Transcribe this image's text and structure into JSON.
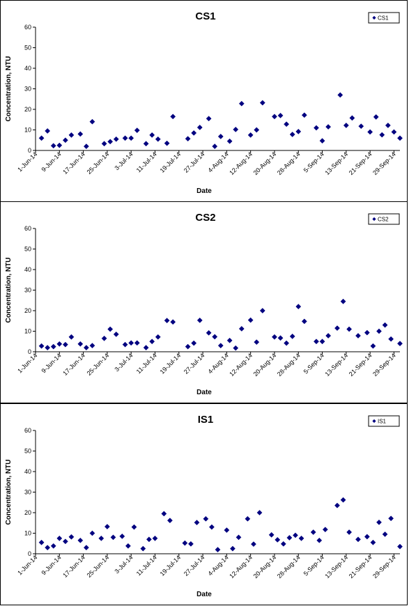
{
  "chart_data": [
    {
      "type": "scatter",
      "title": "CS1",
      "xlabel": "Date",
      "ylabel": "Concentration, NTU",
      "ylim": [
        0,
        60
      ],
      "yticks": [
        "0",
        "10",
        "20",
        "30",
        "40",
        "50",
        "60"
      ],
      "xlim": [
        "2014-06-01",
        "2014-10-01"
      ],
      "xticks": [
        {
          "date": "2014-06-01",
          "label": "1-Jun-14"
        },
        {
          "date": "2014-06-09",
          "label": "9-Jun-14"
        },
        {
          "date": "2014-06-17",
          "label": "17-Jun-14"
        },
        {
          "date": "2014-06-25",
          "label": "25-Jun-14"
        },
        {
          "date": "2014-07-03",
          "label": "3-Jul-14"
        },
        {
          "date": "2014-07-11",
          "label": "11-Jul-14"
        },
        {
          "date": "2014-07-19",
          "label": "19-Jul-14"
        },
        {
          "date": "2014-07-27",
          "label": "27-Jul-14"
        },
        {
          "date": "2014-08-04",
          "label": "4-Aug-14"
        },
        {
          "date": "2014-08-12",
          "label": "12-Aug-14"
        },
        {
          "date": "2014-08-20",
          "label": "20-Aug-14"
        },
        {
          "date": "2014-08-28",
          "label": "28-Aug-14"
        },
        {
          "date": "2014-09-05",
          "label": "5-Sep-14"
        },
        {
          "date": "2014-09-13",
          "label": "13-Sep-14"
        },
        {
          "date": "2014-09-21",
          "label": "21-Sep-14"
        },
        {
          "date": "2014-09-29",
          "label": "29-Sep-14"
        }
      ],
      "legend": "top-right",
      "grid": false,
      "series": [
        {
          "name": "CS1",
          "color": "#000080",
          "marker": "diamond",
          "points": [
            {
              "x": "2014-06-03",
              "y": 6
            },
            {
              "x": "2014-06-05",
              "y": 9.5
            },
            {
              "x": "2014-06-07",
              "y": 2.3
            },
            {
              "x": "2014-06-09",
              "y": 2.5
            },
            {
              "x": "2014-06-11",
              "y": 5
            },
            {
              "x": "2014-06-13",
              "y": 7.5
            },
            {
              "x": "2014-06-16",
              "y": 8
            },
            {
              "x": "2014-06-18",
              "y": 2
            },
            {
              "x": "2014-06-20",
              "y": 14
            },
            {
              "x": "2014-06-24",
              "y": 3.3
            },
            {
              "x": "2014-06-26",
              "y": 4.3
            },
            {
              "x": "2014-06-28",
              "y": 5.5
            },
            {
              "x": "2014-07-01",
              "y": 6
            },
            {
              "x": "2014-07-03",
              "y": 6
            },
            {
              "x": "2014-07-05",
              "y": 9.8
            },
            {
              "x": "2014-07-08",
              "y": 3.3
            },
            {
              "x": "2014-07-10",
              "y": 7.5
            },
            {
              "x": "2014-07-12",
              "y": 5.5
            },
            {
              "x": "2014-07-15",
              "y": 3.5
            },
            {
              "x": "2014-07-17",
              "y": 16.5
            },
            {
              "x": "2014-07-22",
              "y": 5.7
            },
            {
              "x": "2014-07-24",
              "y": 8.5
            },
            {
              "x": "2014-07-26",
              "y": 11.2
            },
            {
              "x": "2014-07-29",
              "y": 15.5
            },
            {
              "x": "2014-07-31",
              "y": 2
            },
            {
              "x": "2014-08-02",
              "y": 6.8
            },
            {
              "x": "2014-08-05",
              "y": 4.5
            },
            {
              "x": "2014-08-07",
              "y": 10.2
            },
            {
              "x": "2014-08-09",
              "y": 22.8
            },
            {
              "x": "2014-08-12",
              "y": 7.5
            },
            {
              "x": "2014-08-14",
              "y": 10
            },
            {
              "x": "2014-08-16",
              "y": 23.2
            },
            {
              "x": "2014-08-20",
              "y": 16.5
            },
            {
              "x": "2014-08-22",
              "y": 17
            },
            {
              "x": "2014-08-24",
              "y": 12.8
            },
            {
              "x": "2014-08-26",
              "y": 7.8
            },
            {
              "x": "2014-08-28",
              "y": 9.2
            },
            {
              "x": "2014-08-30",
              "y": 17.2
            },
            {
              "x": "2014-09-03",
              "y": 11
            },
            {
              "x": "2014-09-05",
              "y": 4.7
            },
            {
              "x": "2014-09-07",
              "y": 11.5
            },
            {
              "x": "2014-09-11",
              "y": 27
            },
            {
              "x": "2014-09-13",
              "y": 12.2
            },
            {
              "x": "2014-09-15",
              "y": 15.8
            },
            {
              "x": "2014-09-18",
              "y": 11.8
            },
            {
              "x": "2014-09-21",
              "y": 9
            },
            {
              "x": "2014-09-23",
              "y": 16.3
            },
            {
              "x": "2014-09-25",
              "y": 7.6
            },
            {
              "x": "2014-09-27",
              "y": 12.2
            },
            {
              "x": "2014-09-29",
              "y": 9
            },
            {
              "x": "2014-10-01",
              "y": 6
            }
          ]
        }
      ]
    },
    {
      "type": "scatter",
      "title": "CS2",
      "xlabel": "Date",
      "ylabel": "Concentration, NTU",
      "ylim": [
        0,
        60
      ],
      "yticks": [
        "0",
        "10",
        "20",
        "30",
        "40",
        "50",
        "60"
      ],
      "xlim": [
        "2014-06-01",
        "2014-10-01"
      ],
      "xticks": [
        {
          "date": "2014-06-01",
          "label": "1-Jun-14"
        },
        {
          "date": "2014-06-09",
          "label": "9-Jun-14"
        },
        {
          "date": "2014-06-17",
          "label": "17-Jun-14"
        },
        {
          "date": "2014-06-25",
          "label": "25-Jun-14"
        },
        {
          "date": "2014-07-03",
          "label": "3-Jul-14"
        },
        {
          "date": "2014-07-11",
          "label": "11-Jul-14"
        },
        {
          "date": "2014-07-19",
          "label": "19-Jul-14"
        },
        {
          "date": "2014-07-27",
          "label": "27-Jul-14"
        },
        {
          "date": "2014-08-04",
          "label": "4-Aug-14"
        },
        {
          "date": "2014-08-12",
          "label": "12-Aug-14"
        },
        {
          "date": "2014-08-20",
          "label": "20-Aug-14"
        },
        {
          "date": "2014-08-28",
          "label": "28-Aug-14"
        },
        {
          "date": "2014-09-05",
          "label": "5-Sep-14"
        },
        {
          "date": "2014-09-13",
          "label": "13-Sep-14"
        },
        {
          "date": "2014-09-21",
          "label": "21-Sep-14"
        },
        {
          "date": "2014-09-29",
          "label": "29-Sep-14"
        }
      ],
      "legend": "top-right",
      "grid": false,
      "series": [
        {
          "name": "CS2",
          "color": "#000080",
          "marker": "diamond",
          "points": [
            {
              "x": "2014-06-03",
              "y": 2.8
            },
            {
              "x": "2014-06-05",
              "y": 2
            },
            {
              "x": "2014-06-07",
              "y": 2.5
            },
            {
              "x": "2014-06-09",
              "y": 3.8
            },
            {
              "x": "2014-06-11",
              "y": 3.5
            },
            {
              "x": "2014-06-13",
              "y": 7.2
            },
            {
              "x": "2014-06-16",
              "y": 3.8
            },
            {
              "x": "2014-06-18",
              "y": 2
            },
            {
              "x": "2014-06-20",
              "y": 3
            },
            {
              "x": "2014-06-24",
              "y": 6.5
            },
            {
              "x": "2014-06-26",
              "y": 11
            },
            {
              "x": "2014-06-28",
              "y": 8.5
            },
            {
              "x": "2014-07-01",
              "y": 3.5
            },
            {
              "x": "2014-07-03",
              "y": 4.3
            },
            {
              "x": "2014-07-05",
              "y": 4.3
            },
            {
              "x": "2014-07-08",
              "y": 2
            },
            {
              "x": "2014-07-10",
              "y": 5
            },
            {
              "x": "2014-07-12",
              "y": 7.2
            },
            {
              "x": "2014-07-15",
              "y": 15.2
            },
            {
              "x": "2014-07-17",
              "y": 14.5
            },
            {
              "x": "2014-07-22",
              "y": 2.5
            },
            {
              "x": "2014-07-24",
              "y": 4.2
            },
            {
              "x": "2014-07-26",
              "y": 15.3
            },
            {
              "x": "2014-07-29",
              "y": 9.2
            },
            {
              "x": "2014-07-31",
              "y": 7.3
            },
            {
              "x": "2014-08-02",
              "y": 3
            },
            {
              "x": "2014-08-05",
              "y": 5.5
            },
            {
              "x": "2014-08-07",
              "y": 1.8
            },
            {
              "x": "2014-08-09",
              "y": 11.2
            },
            {
              "x": "2014-08-12",
              "y": 15.4
            },
            {
              "x": "2014-08-14",
              "y": 4.7
            },
            {
              "x": "2014-08-16",
              "y": 20
            },
            {
              "x": "2014-08-20",
              "y": 7.2
            },
            {
              "x": "2014-08-22",
              "y": 6.7
            },
            {
              "x": "2014-08-24",
              "y": 4.2
            },
            {
              "x": "2014-08-26",
              "y": 7.5
            },
            {
              "x": "2014-08-28",
              "y": 22
            },
            {
              "x": "2014-08-30",
              "y": 14.8
            },
            {
              "x": "2014-09-03",
              "y": 5
            },
            {
              "x": "2014-09-05",
              "y": 5
            },
            {
              "x": "2014-09-07",
              "y": 7.8
            },
            {
              "x": "2014-09-10",
              "y": 11.5
            },
            {
              "x": "2014-09-12",
              "y": 24.5
            },
            {
              "x": "2014-09-14",
              "y": 11
            },
            {
              "x": "2014-09-17",
              "y": 7.8
            },
            {
              "x": "2014-09-20",
              "y": 9.3
            },
            {
              "x": "2014-09-22",
              "y": 2.8
            },
            {
              "x": "2014-09-24",
              "y": 10
            },
            {
              "x": "2014-09-26",
              "y": 13
            },
            {
              "x": "2014-09-28",
              "y": 6.2
            },
            {
              "x": "2014-10-01",
              "y": 4
            }
          ]
        }
      ]
    },
    {
      "type": "scatter",
      "title": "IS1",
      "xlabel": "Date",
      "ylabel": "Concentration, NTU",
      "ylim": [
        0,
        60
      ],
      "yticks": [
        "0",
        "10",
        "20",
        "30",
        "40",
        "50",
        "60"
      ],
      "xlim": [
        "2014-06-01",
        "2014-10-01"
      ],
      "xticks": [
        {
          "date": "2014-06-01",
          "label": "1-Jun-14"
        },
        {
          "date": "2014-06-09",
          "label": "9-Jun-14"
        },
        {
          "date": "2014-06-17",
          "label": "17-Jun-14"
        },
        {
          "date": "2014-06-25",
          "label": "25-Jun-14"
        },
        {
          "date": "2014-07-03",
          "label": "3-Jul-14"
        },
        {
          "date": "2014-07-11",
          "label": "11-Jul-14"
        },
        {
          "date": "2014-07-19",
          "label": "19-Jul-14"
        },
        {
          "date": "2014-07-27",
          "label": "27-Jul-14"
        },
        {
          "date": "2014-08-04",
          "label": "4-Aug-14"
        },
        {
          "date": "2014-08-12",
          "label": "12-Aug-14"
        },
        {
          "date": "2014-08-20",
          "label": "20-Aug-14"
        },
        {
          "date": "2014-08-28",
          "label": "28-Aug-14"
        },
        {
          "date": "2014-09-05",
          "label": "5-Sep-14"
        },
        {
          "date": "2014-09-13",
          "label": "13-Sep-14"
        },
        {
          "date": "2014-09-21",
          "label": "21-Sep-14"
        },
        {
          "date": "2014-09-29",
          "label": "29-Sep-14"
        }
      ],
      "legend": "top-right",
      "grid": false,
      "series": [
        {
          "name": "IS1",
          "color": "#000080",
          "marker": "diamond",
          "points": [
            {
              "x": "2014-06-03",
              "y": 5.5
            },
            {
              "x": "2014-06-05",
              "y": 3
            },
            {
              "x": "2014-06-07",
              "y": 3.8
            },
            {
              "x": "2014-06-09",
              "y": 7.5
            },
            {
              "x": "2014-06-11",
              "y": 6
            },
            {
              "x": "2014-06-13",
              "y": 8.2
            },
            {
              "x": "2014-06-16",
              "y": 6.5
            },
            {
              "x": "2014-06-18",
              "y": 3
            },
            {
              "x": "2014-06-20",
              "y": 10
            },
            {
              "x": "2014-06-23",
              "y": 7.5
            },
            {
              "x": "2014-06-25",
              "y": 13.2
            },
            {
              "x": "2014-06-27",
              "y": 8
            },
            {
              "x": "2014-06-30",
              "y": 8.5
            },
            {
              "x": "2014-07-02",
              "y": 3.8
            },
            {
              "x": "2014-07-04",
              "y": 13
            },
            {
              "x": "2014-07-07",
              "y": 2.5
            },
            {
              "x": "2014-07-09",
              "y": 7
            },
            {
              "x": "2014-07-11",
              "y": 7.5
            },
            {
              "x": "2014-07-14",
              "y": 19.5
            },
            {
              "x": "2014-07-16",
              "y": 16.2
            },
            {
              "x": "2014-07-21",
              "y": 5.2
            },
            {
              "x": "2014-07-23",
              "y": 4.8
            },
            {
              "x": "2014-07-25",
              "y": 15.2
            },
            {
              "x": "2014-07-28",
              "y": 17
            },
            {
              "x": "2014-07-30",
              "y": 13
            },
            {
              "x": "2014-08-01",
              "y": 2
            },
            {
              "x": "2014-08-04",
              "y": 11.5
            },
            {
              "x": "2014-08-06",
              "y": 2.5
            },
            {
              "x": "2014-08-08",
              "y": 8
            },
            {
              "x": "2014-08-11",
              "y": 17
            },
            {
              "x": "2014-08-13",
              "y": 4.7
            },
            {
              "x": "2014-08-15",
              "y": 20
            },
            {
              "x": "2014-08-19",
              "y": 9.2
            },
            {
              "x": "2014-08-21",
              "y": 6.8
            },
            {
              "x": "2014-08-23",
              "y": 4.8
            },
            {
              "x": "2014-08-25",
              "y": 7.8
            },
            {
              "x": "2014-08-27",
              "y": 9
            },
            {
              "x": "2014-08-29",
              "y": 7.5
            },
            {
              "x": "2014-09-02",
              "y": 10.5
            },
            {
              "x": "2014-09-04",
              "y": 6.5
            },
            {
              "x": "2014-09-06",
              "y": 11.8
            },
            {
              "x": "2014-09-10",
              "y": 23.5
            },
            {
              "x": "2014-09-12",
              "y": 26.2
            },
            {
              "x": "2014-09-14",
              "y": 10.5
            },
            {
              "x": "2014-09-17",
              "y": 7
            },
            {
              "x": "2014-09-20",
              "y": 8.3
            },
            {
              "x": "2014-09-22",
              "y": 5.5
            },
            {
              "x": "2014-09-24",
              "y": 15.3
            },
            {
              "x": "2014-09-26",
              "y": 9.5
            },
            {
              "x": "2014-09-28",
              "y": 17.2
            },
            {
              "x": "2014-10-01",
              "y": 3.5
            }
          ]
        }
      ]
    }
  ]
}
